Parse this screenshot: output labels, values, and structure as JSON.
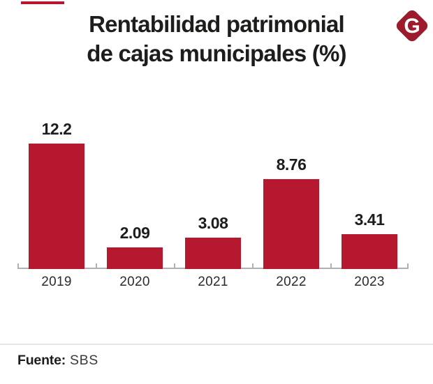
{
  "page": {
    "title_line1": "Rentabilidad patrimonial",
    "title_line2": "de cajas municipales (%)",
    "logo_letter": "G",
    "source_label": "Fuente:",
    "source_value": "SBS"
  },
  "colors": {
    "bar": "#b5182f",
    "logo": "#9c1b2c",
    "accent_dash": "#b5182f",
    "title_text": "#1d1d1b",
    "axis": "#b0b0b0"
  },
  "chart_data": {
    "type": "bar",
    "title": "Rentabilidad patrimonial de cajas municipales (%)",
    "categories": [
      "2019",
      "2020",
      "2021",
      "2022",
      "2023"
    ],
    "values": [
      12.2,
      2.09,
      3.08,
      8.76,
      3.41
    ],
    "value_labels": [
      "12.2",
      "2.09",
      "3.08",
      "8.76",
      "3.41"
    ],
    "xlabel": "",
    "ylabel": "",
    "ylim": [
      0,
      13
    ],
    "grid": false,
    "legend": false,
    "bar_color": "#b5182f",
    "source": "Fuente: SBS"
  }
}
